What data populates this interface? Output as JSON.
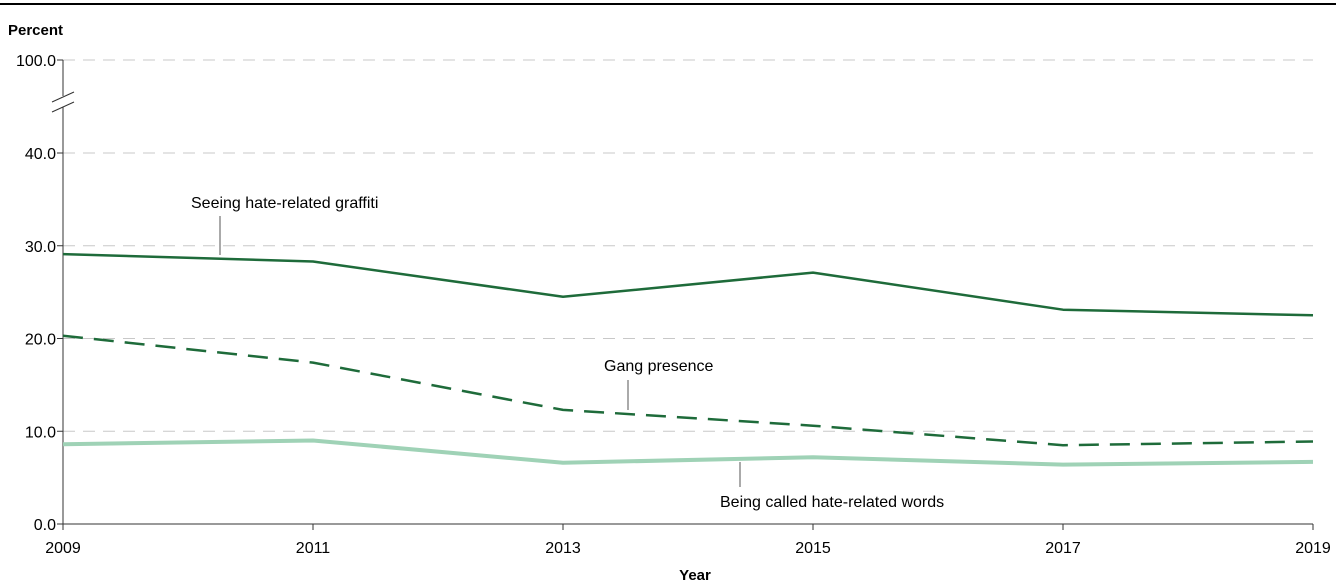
{
  "chart_data": {
    "type": "line",
    "title": "",
    "ylabel": "Percent",
    "xlabel": "Year",
    "ylim": [
      0,
      40
    ],
    "y_break_label": "100.0",
    "yticks": [
      "0.0",
      "10.0",
      "20.0",
      "30.0",
      "40.0"
    ],
    "x": [
      2009,
      2011,
      2013,
      2015,
      2017,
      2019
    ],
    "xtick_labels": [
      "2009",
      "2011",
      "2013",
      "2015",
      "2017",
      "2019"
    ],
    "grid": true,
    "series": [
      {
        "name": "Seeing hate-related graffiti",
        "values": [
          29.1,
          28.3,
          24.5,
          27.1,
          23.1,
          22.5
        ],
        "color": "#1e6b3a",
        "style": "solid"
      },
      {
        "name": "Gang presence",
        "values": [
          20.3,
          17.4,
          12.3,
          10.6,
          8.5,
          8.9
        ],
        "color": "#1e6b3a",
        "style": "dashed"
      },
      {
        "name": "Being called hate-related words",
        "values": [
          8.6,
          9.0,
          6.6,
          7.2,
          6.4,
          6.7
        ],
        "color": "#9fd2b6",
        "style": "solid"
      }
    ]
  }
}
